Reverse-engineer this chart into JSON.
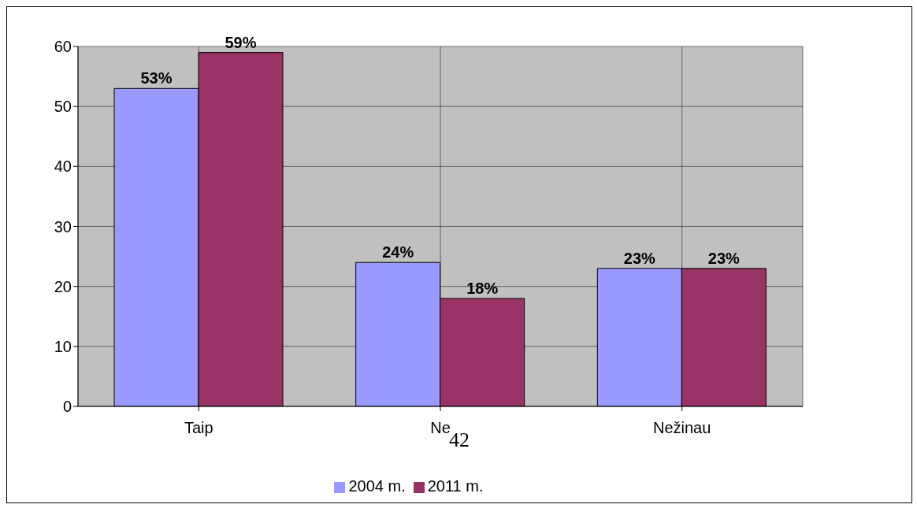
{
  "chart_data": {
    "type": "bar",
    "categories": [
      "Taip",
      "Ne",
      "Nežinau"
    ],
    "series": [
      {
        "name": "2004 m.",
        "color": "#9999ff",
        "values": [
          53,
          24,
          23
        ],
        "value_labels": [
          "53%",
          "24%",
          "23%"
        ]
      },
      {
        "name": "2011  m.",
        "color": "#993366",
        "values": [
          59,
          18,
          23
        ],
        "value_labels": [
          "59%",
          "18%",
          "23%"
        ]
      }
    ],
    "ylim": [
      0,
      60
    ],
    "yticks": [
      0,
      10,
      20,
      30,
      40,
      50,
      60
    ],
    "grid": true,
    "legend": "bottom",
    "annotations": [
      "42"
    ]
  }
}
